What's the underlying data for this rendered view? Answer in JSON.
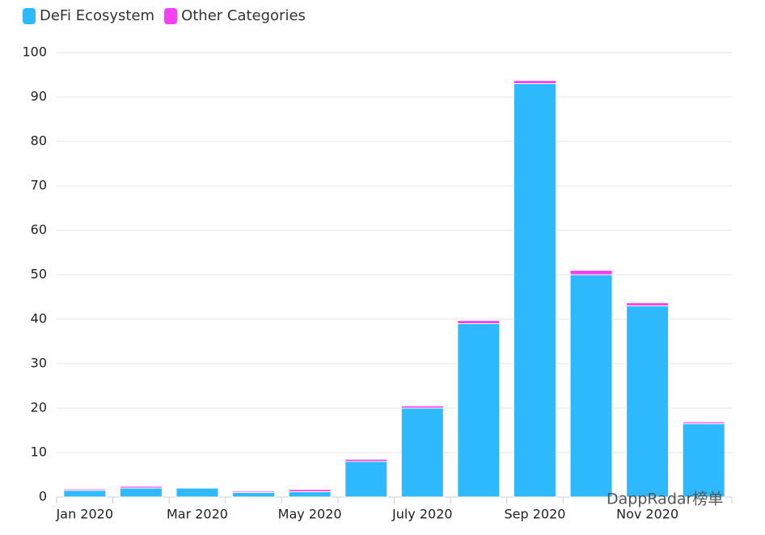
{
  "chart_data": {
    "type": "stacked-bar",
    "categories": [
      "Jan 2020",
      null,
      "Mar 2020",
      null,
      "May 2020",
      null,
      "July 2020",
      null,
      "Sep 2020",
      null,
      "Nov 2020",
      null
    ],
    "series": [
      {
        "name": "DeFi Ecosystem",
        "color": "#2eb8fd",
        "values": [
          1.5,
          2,
          2,
          1,
          1.2,
          8,
          20,
          39,
          93,
          50,
          43,
          16.5
        ]
      },
      {
        "name": "Other Categories",
        "color": "#f53ff2",
        "values": [
          0.3,
          0.4,
          0.1,
          0.3,
          0.5,
          0.5,
          0.5,
          0.7,
          0.7,
          1,
          0.7,
          0.4
        ]
      }
    ],
    "ylim": [
      0,
      100
    ],
    "yticks": [
      0,
      10,
      20,
      30,
      40,
      50,
      60,
      70,
      80,
      90,
      100
    ],
    "grid": true,
    "legend": "top-left",
    "watermark": "DappRadar榜单"
  }
}
